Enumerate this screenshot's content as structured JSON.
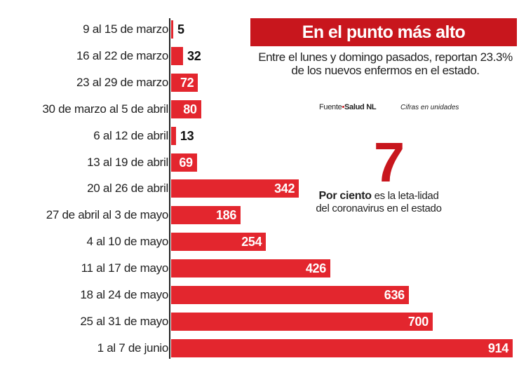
{
  "chart_data": {
    "type": "bar",
    "orientation": "horizontal",
    "title": "En el punto más alto",
    "subtitle": "Entre el lunes y domingo pasados, reportan 23.3% de los nuevos enfermos en el estado.",
    "source": {
      "prefix": "Fuente",
      "name": "Salud NL"
    },
    "units_note": "Cifras en unidades",
    "categories": [
      "9 al 15 de marzo",
      "16 al 22 de marzo",
      "23 al 29 de marzo",
      "30 de marzo al 5 de abril",
      "6 al 12 de abril",
      "13 al 19 de abril",
      "20 al 26 de abril",
      "27 de abril al 3 de mayo",
      "4 al 10 de mayo",
      "11 al 17 de mayo",
      "18 al 24 de mayo",
      "25 al 31 de mayo",
      "1 al 7 de junio"
    ],
    "values": [
      5,
      32,
      72,
      80,
      13,
      69,
      342,
      186,
      254,
      426,
      636,
      700,
      914
    ],
    "xlim": [
      0,
      914
    ],
    "grid": false,
    "bar_color": "#e3262e",
    "accent_color": "#c8161d",
    "callout": {
      "number": "7",
      "bold": "Por ciento",
      "text": " es la leta-lidad del coronavirus en el estado"
    }
  }
}
